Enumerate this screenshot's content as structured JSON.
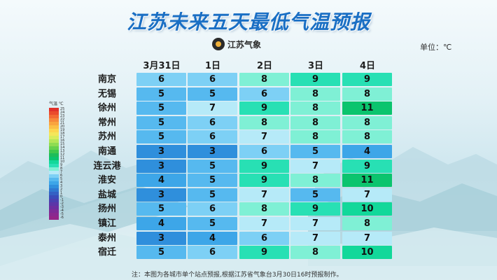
{
  "title": "江苏未来五天最低气温预报",
  "logo": {
    "text": "江苏气象"
  },
  "unit": "单位：℃",
  "columns": [
    "3月31日",
    "1日",
    "2日",
    "3日",
    "4日"
  ],
  "rows": [
    {
      "city": "南京",
      "values": [
        6,
        6,
        8,
        9,
        9
      ]
    },
    {
      "city": "无锡",
      "values": [
        5,
        5,
        6,
        8,
        8
      ]
    },
    {
      "city": "徐州",
      "values": [
        5,
        7,
        9,
        8,
        11
      ]
    },
    {
      "city": "常州",
      "values": [
        5,
        6,
        8,
        8,
        8
      ]
    },
    {
      "city": "苏州",
      "values": [
        5,
        6,
        7,
        8,
        8
      ]
    },
    {
      "city": "南通",
      "values": [
        3,
        3,
        6,
        5,
        4
      ]
    },
    {
      "city": "连云港",
      "values": [
        3,
        5,
        9,
        7,
        9
      ]
    },
    {
      "city": "淮安",
      "values": [
        4,
        5,
        9,
        8,
        11
      ]
    },
    {
      "city": "盐城",
      "values": [
        3,
        5,
        7,
        5,
        7
      ]
    },
    {
      "city": "扬州",
      "values": [
        5,
        6,
        8,
        9,
        10
      ]
    },
    {
      "city": "镇江",
      "values": [
        4,
        5,
        7,
        7,
        8
      ]
    },
    {
      "city": "泰州",
      "values": [
        3,
        4,
        6,
        7,
        7
      ]
    },
    {
      "city": "宿迁",
      "values": [
        5,
        6,
        9,
        8,
        10
      ]
    }
  ],
  "color_scale": {
    "3": "#2f8fdc",
    "4": "#3da6e8",
    "5": "#56b9ef",
    "6": "#7dd0f5",
    "7": "#b6eaf8",
    "8": "#7ff0d5",
    "9": "#28e0b4",
    "10": "#12d89a",
    "11": "#0bc46e"
  },
  "legend": {
    "header": "气温 ℃",
    "items": [
      {
        "label": "25",
        "color": "#e0302a"
      },
      {
        "label": "24",
        "color": "#ea4b2d"
      },
      {
        "label": "23",
        "color": "#f26a33"
      },
      {
        "label": "22",
        "color": "#f7893a"
      },
      {
        "label": "21",
        "color": "#f9a43f"
      },
      {
        "label": "20",
        "color": "#fbbf45"
      },
      {
        "label": "19",
        "color": "#fdd64e"
      },
      {
        "label": "18",
        "color": "#f4e65a"
      },
      {
        "label": "17",
        "color": "#d9ec5b"
      },
      {
        "label": "16",
        "color": "#b5e657"
      },
      {
        "label": "15",
        "color": "#8edc52"
      },
      {
        "label": "14",
        "color": "#66d14d"
      },
      {
        "label": "13",
        "color": "#3fc84c"
      },
      {
        "label": "12",
        "color": "#1dbd5a"
      },
      {
        "label": "11",
        "color": "#0bc46e"
      },
      {
        "label": "10",
        "color": "#12d89a"
      },
      {
        "label": "9",
        "color": "#28e0b4"
      },
      {
        "label": "8",
        "color": "#7ff0d5"
      },
      {
        "label": "7",
        "color": "#b6eaf8"
      },
      {
        "label": "6",
        "color": "#7dd0f5"
      },
      {
        "label": "5",
        "color": "#56b9ef"
      },
      {
        "label": "4",
        "color": "#3da6e8"
      },
      {
        "label": "3",
        "color": "#2f8fdc"
      },
      {
        "label": "2",
        "color": "#2f78d0"
      },
      {
        "label": "1",
        "color": "#3461c4"
      },
      {
        "label": "0",
        "color": "#3a4cb9"
      },
      {
        "label": "-1",
        "color": "#4a3fb0"
      },
      {
        "label": "-2",
        "color": "#5b35a8"
      },
      {
        "label": "-3",
        "color": "#6c2ea0"
      },
      {
        "label": "-4",
        "color": "#7c2a98"
      },
      {
        "label": "-5",
        "color": "#8a2790"
      },
      {
        "label": "-6",
        "color": "#952488"
      }
    ]
  },
  "footnote": "注：本图为各城市单个站点预报,根据江苏省气象台3月30日16时预报制作。"
}
